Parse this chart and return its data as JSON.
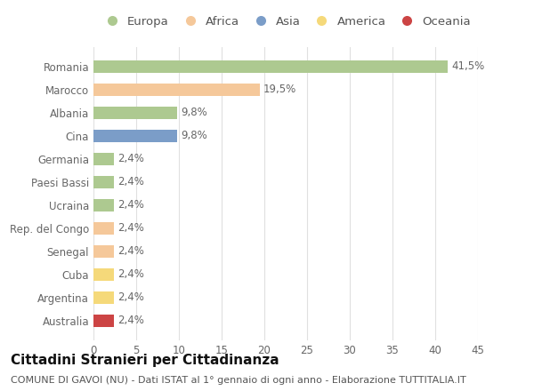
{
  "categories": [
    "Romania",
    "Marocco",
    "Albania",
    "Cina",
    "Germania",
    "Paesi Bassi",
    "Ucraina",
    "Rep. del Congo",
    "Senegal",
    "Cuba",
    "Argentina",
    "Australia"
  ],
  "values": [
    41.5,
    19.5,
    9.8,
    9.8,
    2.4,
    2.4,
    2.4,
    2.4,
    2.4,
    2.4,
    2.4,
    2.4
  ],
  "labels": [
    "41,5%",
    "19,5%",
    "9,8%",
    "9,8%",
    "2,4%",
    "2,4%",
    "2,4%",
    "2,4%",
    "2,4%",
    "2,4%",
    "2,4%",
    "2,4%"
  ],
  "colors": [
    "#adc990",
    "#f5c89a",
    "#adc990",
    "#7b9dc8",
    "#adc990",
    "#adc990",
    "#adc990",
    "#f5c89a",
    "#f5c89a",
    "#f5d97a",
    "#f5d97a",
    "#cc4444"
  ],
  "legend_labels": [
    "Europa",
    "Africa",
    "Asia",
    "America",
    "Oceania"
  ],
  "legend_colors": [
    "#adc990",
    "#f5c89a",
    "#7b9dc8",
    "#f5d97a",
    "#cc4444"
  ],
  "xlim": [
    0,
    45
  ],
  "xticks": [
    0,
    5,
    10,
    15,
    20,
    25,
    30,
    35,
    40,
    45
  ],
  "title_main": "Cittadini Stranieri per Cittadinanza",
  "title_sub": "COMUNE DI GAVOI (NU) - Dati ISTAT al 1° gennaio di ogni anno - Elaborazione TUTTITALIA.IT",
  "background_color": "#ffffff",
  "grid_color": "#e0e0e0",
  "bar_height": 0.55,
  "label_fontsize": 8.5,
  "tick_fontsize": 8.5,
  "legend_fontsize": 9.5,
  "title_fontsize": 11,
  "subtitle_fontsize": 8
}
